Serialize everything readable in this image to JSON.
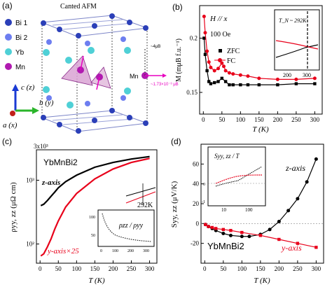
{
  "figure": {
    "panel_a": {
      "letter": "(a)",
      "title": "Canted AFM",
      "legend": [
        {
          "label": "Bi 1",
          "color": "#2b3fb8"
        },
        {
          "label": "Bi 2",
          "color": "#6d7ef0"
        },
        {
          "label": "Yb",
          "color": "#4fd0d6"
        },
        {
          "label": "Mn",
          "color": "#b01ab0"
        }
      ],
      "axes": {
        "c": "c (z)",
        "b": "b (y)",
        "a": "a (x)"
      },
      "mn_label": "Mn",
      "moment_label": "~1.73×10⁻³ μB",
      "moment_small": "~4μB"
    },
    "panel_b": {
      "letter": "(b)",
      "field_dir": "H // x",
      "field": "100 Oe",
      "ylabel": "M (mμB f.u.⁻¹)",
      "xlabel": "T (K)",
      "legend": [
        "ZFC",
        "FC"
      ],
      "colors": {
        "zfc": "#000000",
        "fc": "#e8001a"
      },
      "inset_label": "T_N ~ 292K",
      "inset_ticks": [
        "200",
        "300"
      ]
    },
    "panel_c": {
      "letter": "(c)",
      "material": "YbMnBi2",
      "zlabel": "z-axis",
      "ylabel_series": "y-axis×25",
      "ylabel": "ρyy, zz (μΩ cm)",
      "xlabel": "T (K)",
      "top_exp": "3x10³",
      "inset_label": "ρzz / ρyy",
      "marker": "292K",
      "inset_ticks_x": [
        "0",
        "100",
        "200",
        "300"
      ],
      "inset_ticks_y": [
        "100",
        "50"
      ]
    },
    "panel_d": {
      "letter": "(d)",
      "material": "YbMnBi2",
      "zlabel": "z-axis",
      "ylabel_series": "y-axis",
      "ylabel": "Syy, zz (μV/K)",
      "xlabel": "T (K)",
      "inset_label": "Syy, zz / T",
      "inset_ticks_x": [
        "10",
        "100"
      ],
      "inset_ticks_y": [
        "0",
        "-1"
      ]
    }
  },
  "chart_data": [
    {
      "type": "line",
      "panel": "b",
      "xlabel": "T (K)",
      "ylabel": "M (mμB f.u.⁻¹)",
      "xlim": [
        -10,
        320
      ],
      "ylim": [
        0.13,
        0.23
      ],
      "xticks": [
        0,
        50,
        100,
        150,
        200,
        250,
        300
      ],
      "yticks": [
        0.15,
        0.2
      ],
      "series": [
        {
          "name": "ZFC",
          "x": [
            2,
            5,
            10,
            15,
            20,
            30,
            40,
            50,
            60,
            70,
            80,
            100,
            120,
            150,
            200,
            250,
            300
          ],
          "y": [
            0.2,
            0.185,
            0.17,
            0.16,
            0.158,
            0.159,
            0.16,
            0.163,
            0.16,
            0.157,
            0.157,
            0.157,
            0.157,
            0.157,
            0.157,
            0.158,
            0.158
          ]
        },
        {
          "name": "FC",
          "x": [
            2,
            5,
            10,
            15,
            20,
            30,
            40,
            50,
            55,
            60,
            70,
            80,
            100,
            120,
            150,
            200,
            250,
            300
          ],
          "y": [
            0.22,
            0.205,
            0.188,
            0.178,
            0.173,
            0.17,
            0.172,
            0.177,
            0.174,
            0.17,
            0.168,
            0.167,
            0.166,
            0.165,
            0.163,
            0.162,
            0.162,
            0.163
          ]
        }
      ]
    },
    {
      "type": "line",
      "panel": "c",
      "xlabel": "T (K)",
      "ylabel": "ρyy, zz (μΩ cm)",
      "log_y": true,
      "xlim": [
        -10,
        320
      ],
      "ylim": [
        50,
        3000
      ],
      "xticks": [
        0,
        50,
        100,
        150,
        200,
        250,
        300
      ],
      "series": [
        {
          "name": "z-axis",
          "x": [
            2,
            10,
            20,
            30,
            40,
            50,
            70,
            100,
            150,
            200,
            250,
            300
          ],
          "y": [
            400,
            420,
            480,
            560,
            650,
            760,
            950,
            1200,
            1600,
            1900,
            2150,
            2350
          ]
        },
        {
          "name": "y-axis×25",
          "x": [
            2,
            10,
            20,
            30,
            40,
            50,
            70,
            100,
            150,
            200,
            250,
            300
          ],
          "y": [
            65,
            70,
            90,
            120,
            170,
            230,
            380,
            620,
            1050,
            1500,
            1900,
            2200
          ]
        }
      ]
    },
    {
      "type": "line",
      "panel": "d",
      "xlabel": "T (K)",
      "ylabel": "Syy, zz (μV/K)",
      "xlim": [
        -10,
        320
      ],
      "ylim": [
        -40,
        80
      ],
      "xticks": [
        0,
        50,
        100,
        150,
        200,
        250,
        300
      ],
      "yticks": [
        -20,
        0,
        20,
        40,
        60
      ],
      "series": [
        {
          "name": "z-axis",
          "x": [
            2,
            10,
            20,
            30,
            50,
            70,
            100,
            120,
            150,
            175,
            200,
            225,
            250,
            275,
            300
          ],
          "y": [
            -1,
            -3,
            -5,
            -7,
            -10,
            -12,
            -13,
            -13,
            -11,
            -6,
            2,
            13,
            25,
            42,
            65
          ]
        },
        {
          "name": "y-axis",
          "x": [
            2,
            10,
            20,
            30,
            50,
            70,
            100,
            150,
            200,
            250,
            300
          ],
          "y": [
            -1,
            -3,
            -4,
            -5,
            -6,
            -7,
            -9,
            -12,
            -16,
            -20,
            -24
          ]
        }
      ]
    }
  ]
}
